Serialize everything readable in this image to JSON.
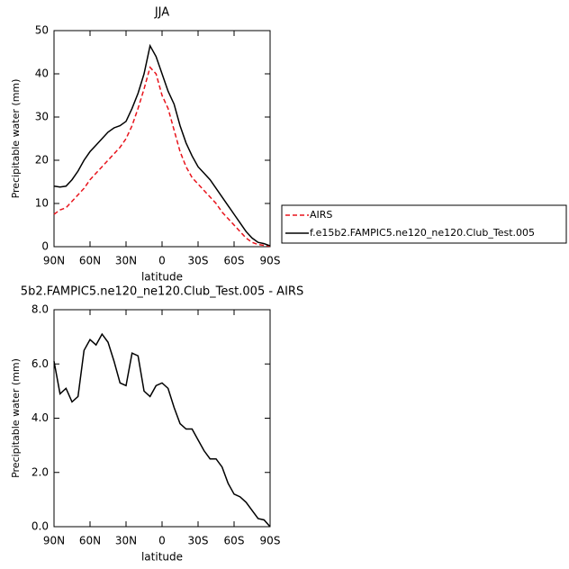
{
  "chart_data": [
    {
      "type": "line",
      "title": "JJA",
      "x_label": "latitude",
      "y_label": "Precipitable water (mm)",
      "x": [
        90,
        85,
        80,
        75,
        70,
        65,
        60,
        55,
        50,
        45,
        40,
        35,
        30,
        25,
        20,
        15,
        10,
        5,
        0,
        -5,
        -10,
        -15,
        -20,
        -25,
        -30,
        -35,
        -40,
        -45,
        -50,
        -55,
        -60,
        -65,
        -70,
        -75,
        -80,
        -85,
        -90
      ],
      "series": [
        {
          "name": "AIRS",
          "color": "#e8141c",
          "dashed": true,
          "values": [
            7.5,
            8.5,
            9,
            10.5,
            12,
            13.5,
            15.5,
            17,
            18.5,
            20,
            21.5,
            23,
            25,
            28,
            32,
            36.5,
            41.5,
            40,
            35,
            32,
            27,
            22,
            18.5,
            16,
            14.5,
            13,
            11.5,
            10,
            8,
            6.5,
            5,
            3.5,
            2,
            1,
            0.5,
            0.3,
            0.1
          ]
        },
        {
          "name": "f.e15b2.FAMPIC5.ne120_ne120.Club_Test.005",
          "color": "#000000",
          "dashed": false,
          "values": [
            14,
            13.8,
            14,
            15.5,
            17.5,
            20,
            22,
            23.5,
            25,
            26.5,
            27.5,
            28,
            29,
            32,
            35.5,
            40,
            46.5,
            44,
            40,
            36,
            33,
            28,
            24,
            21,
            18.5,
            17,
            15.5,
            13.5,
            11.5,
            9.5,
            7.5,
            5.5,
            3.5,
            2,
            1,
            0.7,
            0.2
          ]
        }
      ],
      "xlim": [
        90,
        -90
      ],
      "xticks": [
        {
          "value": 90,
          "label": "90N"
        },
        {
          "value": 60,
          "label": "60N"
        },
        {
          "value": 30,
          "label": "30N"
        },
        0,
        {
          "value": -30,
          "label": "30S"
        },
        {
          "value": -60,
          "label": "60S"
        },
        {
          "value": -90,
          "label": "90S"
        }
      ],
      "ylim": [
        0,
        50
      ],
      "yticks": [
        0,
        10,
        20,
        30,
        40,
        50
      ],
      "legend": "right"
    },
    {
      "type": "line",
      "title": "5b2.FAMPIC5.ne120_ne120.Club_Test.005 - AIRS",
      "x_label": "latitude",
      "y_label": "Precipitable water (mm)",
      "x": [
        90,
        85,
        80,
        75,
        70,
        65,
        60,
        55,
        50,
        45,
        40,
        35,
        30,
        25,
        20,
        15,
        10,
        5,
        0,
        -5,
        -10,
        -15,
        -20,
        -25,
        -30,
        -35,
        -40,
        -45,
        -50,
        -55,
        -60,
        -65,
        -70,
        -75,
        -80,
        -85,
        -90
      ],
      "series": [
        {
          "color": "#000000",
          "dashed": false,
          "values": [
            6.1,
            4.9,
            5.1,
            4.6,
            4.8,
            6.5,
            6.9,
            6.7,
            7.1,
            6.8,
            6.1,
            5.3,
            5.2,
            6.4,
            6.3,
            5.0,
            4.8,
            5.2,
            5.3,
            5.1,
            4.4,
            3.8,
            3.6,
            3.6,
            3.2,
            2.8,
            2.5,
            2.5,
            2.2,
            1.6,
            1.2,
            1.1,
            0.9,
            0.6,
            0.3,
            0.25,
            0
          ]
        }
      ],
      "xlim": [
        90,
        -90
      ],
      "xticks": [
        {
          "value": 90,
          "label": "90N"
        },
        {
          "value": 60,
          "label": "60N"
        },
        {
          "value": 30,
          "label": "30N"
        },
        0,
        {
          "value": -30,
          "label": "30S"
        },
        {
          "value": -60,
          "label": "60S"
        },
        {
          "value": -90,
          "label": "90S"
        }
      ],
      "ylim": [
        0,
        8
      ],
      "yticks": [
        {
          "value": 0,
          "label": "0.0"
        },
        {
          "value": 2,
          "label": "2.0"
        },
        {
          "value": 4,
          "label": "4.0"
        },
        {
          "value": 6,
          "label": "6.0"
        },
        {
          "value": 8,
          "label": "8.0"
        }
      ]
    }
  ]
}
